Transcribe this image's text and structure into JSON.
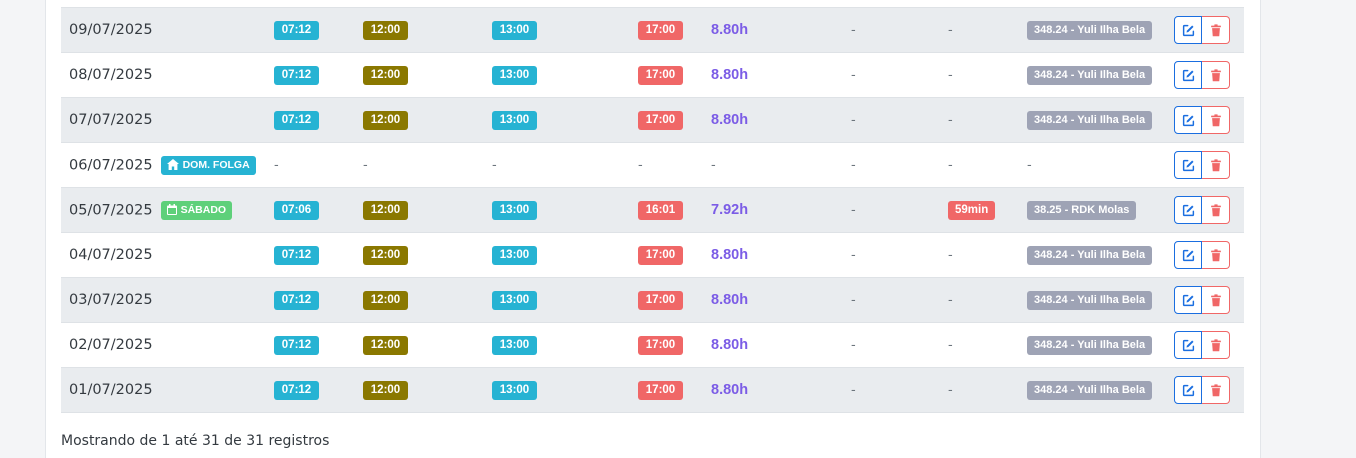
{
  "rows": [
    {
      "date": "09/07/2025",
      "day_badge": "",
      "day_type": "",
      "in": "07:12",
      "lunch_out": "12:00",
      "lunch_in": "13:00",
      "out": "17:00",
      "total": "8.80h",
      "extra": "-",
      "late": "-",
      "obra": "348.24 - Yuli Ilha Bela",
      "has_times": true
    },
    {
      "date": "08/07/2025",
      "day_badge": "",
      "day_type": "",
      "in": "07:12",
      "lunch_out": "12:00",
      "lunch_in": "13:00",
      "out": "17:00",
      "total": "8.80h",
      "extra": "-",
      "late": "-",
      "obra": "348.24 - Yuli Ilha Bela",
      "has_times": true
    },
    {
      "date": "07/07/2025",
      "day_badge": "",
      "day_type": "",
      "in": "07:12",
      "lunch_out": "12:00",
      "lunch_in": "13:00",
      "out": "17:00",
      "total": "8.80h",
      "extra": "-",
      "late": "-",
      "obra": "348.24 - Yuli Ilha Bela",
      "has_times": true
    },
    {
      "date": "06/07/2025",
      "day_badge": "DOM. FOLGA",
      "day_type": "folga",
      "in": "-",
      "lunch_out": "-",
      "lunch_in": "-",
      "out": "-",
      "total": "-",
      "extra": "-",
      "late": "-",
      "obra": "-",
      "has_times": false
    },
    {
      "date": "05/07/2025",
      "day_badge": "SÁBADO",
      "day_type": "sab",
      "in": "07:06",
      "lunch_out": "12:00",
      "lunch_in": "13:00",
      "out": "16:01",
      "total": "7.92h",
      "extra": "-",
      "late": "59min",
      "obra": "38.25 - RDK Molas",
      "has_times": true
    },
    {
      "date": "04/07/2025",
      "day_badge": "",
      "day_type": "",
      "in": "07:12",
      "lunch_out": "12:00",
      "lunch_in": "13:00",
      "out": "17:00",
      "total": "8.80h",
      "extra": "-",
      "late": "-",
      "obra": "348.24 - Yuli Ilha Bela",
      "has_times": true
    },
    {
      "date": "03/07/2025",
      "day_badge": "",
      "day_type": "",
      "in": "07:12",
      "lunch_out": "12:00",
      "lunch_in": "13:00",
      "out": "17:00",
      "total": "8.80h",
      "extra": "-",
      "late": "-",
      "obra": "348.24 - Yuli Ilha Bela",
      "has_times": true
    },
    {
      "date": "02/07/2025",
      "day_badge": "",
      "day_type": "",
      "in": "07:12",
      "lunch_out": "12:00",
      "lunch_in": "13:00",
      "out": "17:00",
      "total": "8.80h",
      "extra": "-",
      "late": "-",
      "obra": "348.24 - Yuli Ilha Bela",
      "has_times": true
    },
    {
      "date": "01/07/2025",
      "day_badge": "",
      "day_type": "",
      "in": "07:12",
      "lunch_out": "12:00",
      "lunch_in": "13:00",
      "out": "17:00",
      "total": "8.80h",
      "extra": "-",
      "late": "-",
      "obra": "348.24 - Yuli Ilha Bela",
      "has_times": true
    }
  ],
  "footer": {
    "text": "Mostrando de 1 até 31 de 31 registros"
  },
  "icons": {
    "edit": "edit-icon",
    "delete": "trash-icon",
    "home": "home-icon",
    "calendar": "calendar-icon"
  },
  "colors": {
    "cyan": "#26b3d3",
    "olive": "#8a7800",
    "red": "#f06767",
    "purple": "#7b5ce6",
    "gray_badge": "#9ea3b5",
    "green": "#5ed07a",
    "blue": "#1a6ee0"
  }
}
